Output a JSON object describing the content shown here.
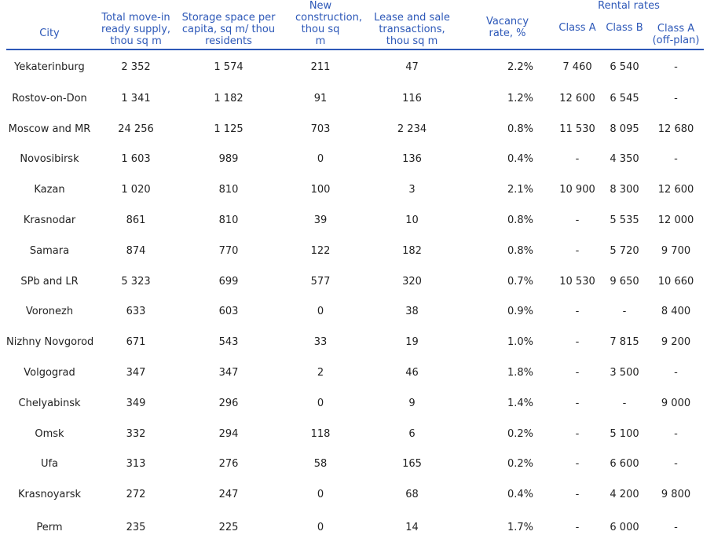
{
  "table": {
    "headers": {
      "city": "City",
      "total": "Total move-in ready supply, thou sq m",
      "storage": "Storage space per capita, sq m/ thou residents",
      "new_construction": "New construction, thou sq m",
      "lease": "Lease and sale transactions, thou sq m",
      "vacancy": "Vacancy rate, %",
      "rental_rates": "Rental rates",
      "class_a": "Class A",
      "class_b": "Class B",
      "class_a_offplan": "Class A (off-plan)"
    },
    "rows": [
      {
        "city": "Yekaterinburg",
        "total": "2 352",
        "storage": "1 574",
        "new": "211",
        "lease": "47",
        "vacancy": "2.2%",
        "a": "7 460",
        "b": "6 540",
        "aoff": "-"
      },
      {
        "city": "Rostov-on-Don",
        "total": "1 341",
        "storage": "1 182",
        "new": "91",
        "lease": "116",
        "vacancy": "1.2%",
        "a": "12 600",
        "b": "6 545",
        "aoff": "-"
      },
      {
        "city": "Moscow and MR",
        "total": "24 256",
        "storage": "1 125",
        "new": "703",
        "lease": "2 234",
        "vacancy": "0.8%",
        "a": "11 530",
        "b": "8 095",
        "aoff": "12 680"
      },
      {
        "city": "Novosibirsk",
        "total": "1 603",
        "storage": "989",
        "new": "0",
        "lease": "136",
        "vacancy": "0.4%",
        "a": "-",
        "b": "4 350",
        "aoff": "-"
      },
      {
        "city": "Kazan",
        "total": "1 020",
        "storage": "810",
        "new": "100",
        "lease": "3",
        "vacancy": "2.1%",
        "a": "10 900",
        "b": "8 300",
        "aoff": "12 600"
      },
      {
        "city": "Krasnodar",
        "total": "861",
        "storage": "810",
        "new": "39",
        "lease": "10",
        "vacancy": "0.8%",
        "a": "-",
        "b": "5 535",
        "aoff": "12 000"
      },
      {
        "city": "Samara",
        "total": "874",
        "storage": "770",
        "new": "122",
        "lease": "182",
        "vacancy": "0.8%",
        "a": "-",
        "b": "5 720",
        "aoff": "9 700"
      },
      {
        "city": "SPb and LR",
        "total": "5 323",
        "storage": "699",
        "new": "577",
        "lease": "320",
        "vacancy": "0.7%",
        "a": "10 530",
        "b": "9 650",
        "aoff": "10 660"
      },
      {
        "city": "Voronezh",
        "total": "633",
        "storage": "603",
        "new": "0",
        "lease": "38",
        "vacancy": "0.9%",
        "a": "-",
        "b": "-",
        "aoff": "8 400"
      },
      {
        "city": "Nizhny Novgorod",
        "total": "671",
        "storage": "543",
        "new": "33",
        "lease": "19",
        "vacancy": "1.0%",
        "a": "-",
        "b": "7 815",
        "aoff": "9 200"
      },
      {
        "city": "Volgograd",
        "total": "347",
        "storage": "347",
        "new": "2",
        "lease": "46",
        "vacancy": "1.8%",
        "a": "-",
        "b": "3 500",
        "aoff": "-"
      },
      {
        "city": "Chelyabinsk",
        "total": "349",
        "storage": "296",
        "new": "0",
        "lease": "9",
        "vacancy": "1.4%",
        "a": "-",
        "b": "-",
        "aoff": "9 000"
      },
      {
        "city": "Omsk",
        "total": "332",
        "storage": "294",
        "new": "118",
        "lease": "6",
        "vacancy": "0.2%",
        "a": "-",
        "b": "5 100",
        "aoff": "-"
      },
      {
        "city": "Ufa",
        "total": "313",
        "storage": "276",
        "new": "58",
        "lease": "165",
        "vacancy": "0.2%",
        "a": "-",
        "b": "6 600",
        "aoff": "-"
      },
      {
        "city": "Krasnoyarsk",
        "total": "272",
        "storage": "247",
        "new": "0",
        "lease": "68",
        "vacancy": "0.4%",
        "a": "-",
        "b": "4 200",
        "aoff": "9 800"
      },
      {
        "city": "Perm",
        "total": "235",
        "storage": "225",
        "new": "0",
        "lease": "14",
        "vacancy": "1.7%",
        "a": "-",
        "b": "6 000",
        "aoff": "-"
      }
    ]
  }
}
